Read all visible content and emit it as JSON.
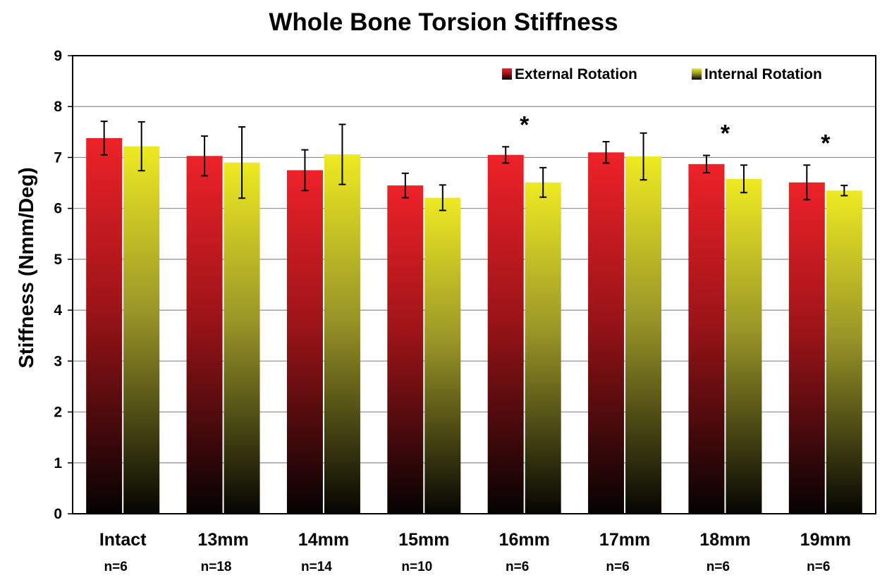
{
  "chart_data": {
    "type": "bar",
    "title": "Whole Bone Torsion Stiffness",
    "xlabel": "",
    "ylabel": "Stiffness (Nmm/Deg)",
    "ylim": [
      0,
      9
    ],
    "yticks": [
      "0",
      "1",
      "2",
      "3",
      "4",
      "5",
      "6",
      "7",
      "8",
      "9"
    ],
    "grid": true,
    "legend_position": "top-right",
    "categories": [
      "Intact",
      "13mm",
      "14mm",
      "15mm",
      "16mm",
      "17mm",
      "18mm",
      "19mm"
    ],
    "sample_sizes": [
      "n=6",
      "n=18",
      "n=14",
      "n=10",
      "n=6",
      "n=6",
      "n=6",
      "n=6"
    ],
    "series": [
      {
        "name": "External Rotation",
        "color_top": "#ee2229",
        "color_bottom": "#050202",
        "values": [
          7.38,
          7.03,
          6.75,
          6.45,
          7.05,
          7.1,
          6.87,
          6.51
        ],
        "errors": [
          0.33,
          0.39,
          0.4,
          0.24,
          0.16,
          0.21,
          0.17,
          0.34
        ]
      },
      {
        "name": "Internal Rotation",
        "color_top": "#eeea22",
        "color_bottom": "#050502",
        "values": [
          7.22,
          6.9,
          7.06,
          6.21,
          6.51,
          7.02,
          6.58,
          6.35
        ],
        "errors": [
          0.48,
          0.7,
          0.59,
          0.25,
          0.29,
          0.46,
          0.27,
          0.1
        ]
      }
    ],
    "annotations": [
      {
        "category": "16mm",
        "text": "*"
      },
      {
        "category": "18mm",
        "text": "*"
      },
      {
        "category": "19mm",
        "text": "*"
      }
    ]
  }
}
